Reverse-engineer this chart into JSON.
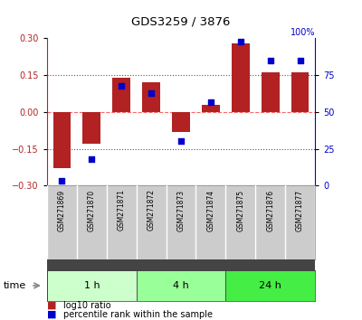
{
  "title": "GDS3259 / 3876",
  "samples": [
    "GSM271869",
    "GSM271870",
    "GSM271871",
    "GSM271872",
    "GSM271873",
    "GSM271874",
    "GSM271875",
    "GSM271876",
    "GSM271877"
  ],
  "log10_ratio": [
    -0.23,
    -0.13,
    0.14,
    0.12,
    -0.08,
    0.03,
    0.28,
    0.16,
    0.16
  ],
  "percentile": [
    3,
    18,
    68,
    63,
    30,
    57,
    98,
    85,
    85
  ],
  "ylim_left": [
    -0.3,
    0.3
  ],
  "ylim_right": [
    0,
    100
  ],
  "yticks_left": [
    -0.3,
    -0.15,
    0,
    0.15,
    0.3
  ],
  "yticks_right": [
    0,
    25,
    50,
    75,
    100
  ],
  "bar_color": "#B22222",
  "dot_color": "#0000CC",
  "zero_line_color": "#FF6666",
  "dotted_line_color": "#555555",
  "groups": [
    {
      "label": "1 h",
      "start": 0,
      "end": 3,
      "color": "#ccffcc"
    },
    {
      "label": "4 h",
      "start": 3,
      "end": 6,
      "color": "#99ff99"
    },
    {
      "label": "24 h",
      "start": 6,
      "end": 9,
      "color": "#44ee44"
    }
  ],
  "time_label": "time",
  "legend_log10": "log10 ratio",
  "legend_percentile": "percentile rank within the sample",
  "background_color": "#ffffff",
  "plot_bg_color": "#ffffff",
  "label_bg_color": "#cccccc"
}
